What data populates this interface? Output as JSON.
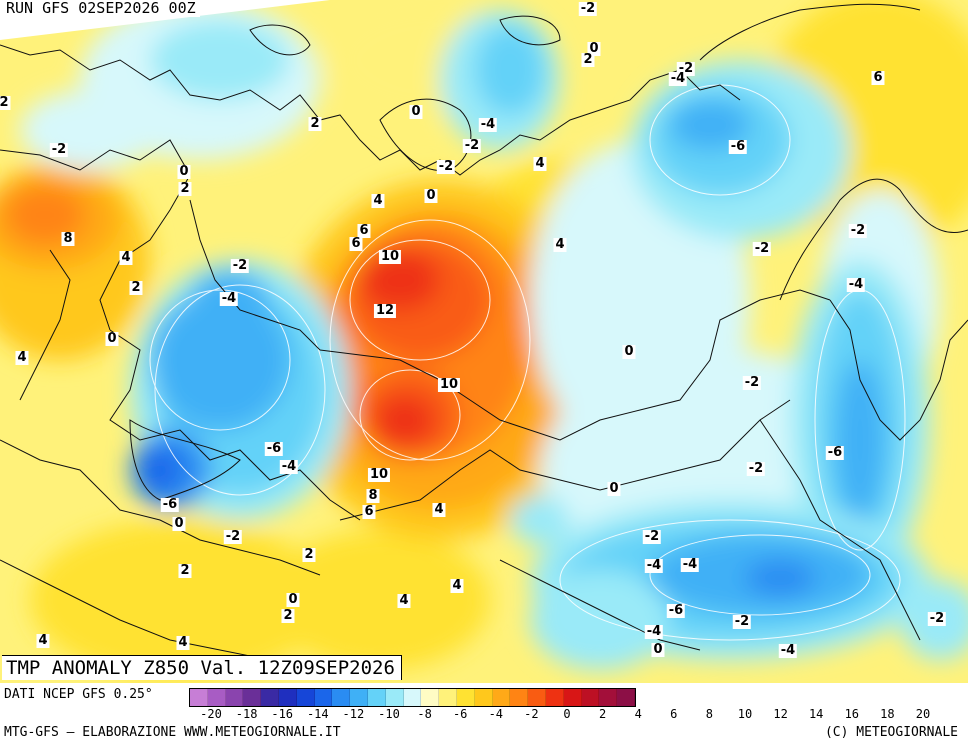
{
  "run_title": "RUN GFS 02SEP2026 00Z",
  "map_title": "TMP ANOMALY Z850 Val. 12Z09SEP2026",
  "data_source": "DATI NCEP GFS 0.25°",
  "credit_left": "MTG-GFS – ELABORAZIONE WWW.METEOGIORNALE.IT",
  "credit_right": "(C) METEOGIORNALE",
  "colorbar": {
    "tick_labels": [
      "-20",
      "-18",
      "-16",
      "-14",
      "-12",
      "-10",
      "-8",
      "-6",
      "-4",
      "-2",
      "0",
      "2",
      "4",
      "6",
      "8",
      "10",
      "12",
      "14",
      "16",
      "18",
      "20"
    ],
    "colors": [
      "#c77ed6",
      "#a85cc4",
      "#8a44ae",
      "#6a2f98",
      "#3a2aa4",
      "#1f2fbf",
      "#1646d8",
      "#1b66ea",
      "#2a8cf2",
      "#3fb0f6",
      "#64d2f8",
      "#9aeaf8",
      "#d7f8fb",
      "#fffcc4",
      "#fff27a",
      "#ffe232",
      "#ffc81c",
      "#ffa918",
      "#ff8414",
      "#f95c12",
      "#ee3212",
      "#d81616",
      "#bd1024",
      "#a30f3a",
      "#8c0f46"
    ]
  },
  "contour_labels": [
    "-2",
    "0",
    "2",
    "-2",
    "-4",
    "6",
    "0",
    "2",
    "-4",
    "-2",
    "-6",
    "-2",
    "2",
    "0",
    "2",
    "4",
    "-2",
    "0",
    "4",
    "8",
    "6",
    "4",
    "6",
    "10",
    "-2",
    "-2",
    "-2",
    "12",
    "-4",
    "-4",
    "4",
    "2",
    "0",
    "0",
    "10",
    "-2",
    "-4",
    "-6",
    "-6",
    "-4",
    "10",
    "-2",
    "-6",
    "8",
    "0",
    "6",
    "4",
    "-2",
    "0",
    "-2",
    "2",
    "-4",
    "2",
    "4",
    "-6",
    "0",
    "2",
    "4",
    "-2",
    "-4",
    "-2",
    "4",
    "4",
    "0",
    "4",
    "-4"
  ]
}
